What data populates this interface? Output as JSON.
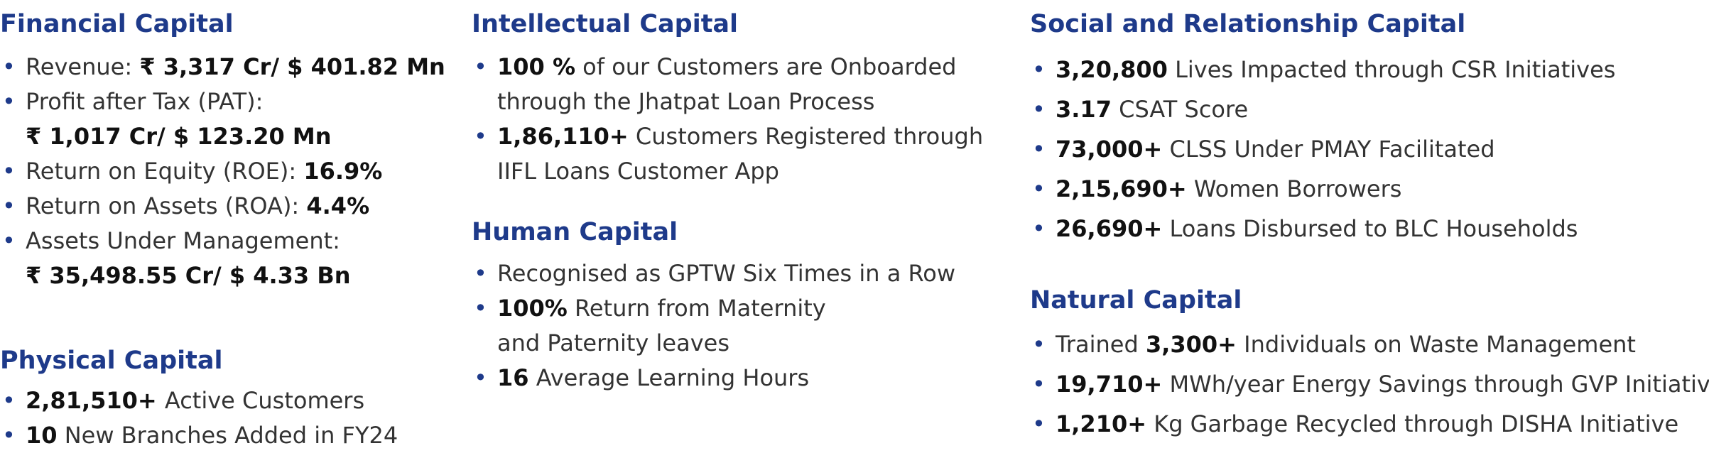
{
  "columns": [
    {
      "sections": [
        {
          "title": "Financial Capital",
          "items": [
            [
              "Revenue: ",
              "₹ 3,317 Cr/ $ 401.82 Mn"
            ],
            [
              "Profit after Tax (PAT):",
              "₹ 1,017 Cr/ $ 123.20 Mn"
            ],
            [
              "Return on Equity (ROE): ",
              "16.9%"
            ],
            [
              "Return on Assets (ROA): ",
              "4.4%"
            ],
            [
              "Assets Under Management:",
              "₹ 35,498.55 Cr/ $ 4.33 Bn"
            ]
          ]
        },
        {
          "title": "Physical Capital",
          "items": [
            [
              "2,81,510+ ",
              " Active Customers"
            ],
            [
              "10",
              " New Branches Added in FY24"
            ]
          ]
        }
      ]
    },
    {
      "sections": [
        {
          "title": "Intellectual Capital",
          "items": [
            [
              "100 %",
              " of our Customers are Onboarded",
              "through the Jhatpat Loan Process"
            ],
            [
              "1,86,110+",
              " Customers Registered through",
              "IIFL Loans Customer App"
            ]
          ]
        },
        {
          "title": "Human Capital",
          "items": [
            [
              "Recognised as GPTW Six Times in a Row"
            ],
            [
              "100%",
              " Return from Maternity",
              "and Paternity leaves"
            ],
            [
              "16",
              " Average Learning Hours"
            ]
          ]
        }
      ]
    },
    {
      "sections": [
        {
          "title": "Social and Relationship Capital",
          "items": [
            [
              "3,20,800",
              " Lives Impacted through CSR Initiatives"
            ],
            [
              "3.17",
              " CSAT Score"
            ],
            [
              "73,000+",
              " CLSS Under PMAY Facilitated"
            ],
            [
              "2,15,690+",
              " Women Borrowers"
            ],
            [
              "26,690+",
              " Loans Disbursed to BLC Households"
            ]
          ]
        },
        {
          "title": "Natural Capital",
          "items": [
            [
              "Trained ",
              "3,300+",
              " Individuals on Waste Management"
            ],
            [
              "19,710+",
              " MWh/year Energy Savings through GVP Initiatives"
            ],
            [
              "1,210+",
              " Kg Garbage Recycled through DISHA Initiative"
            ]
          ]
        }
      ]
    }
  ]
}
